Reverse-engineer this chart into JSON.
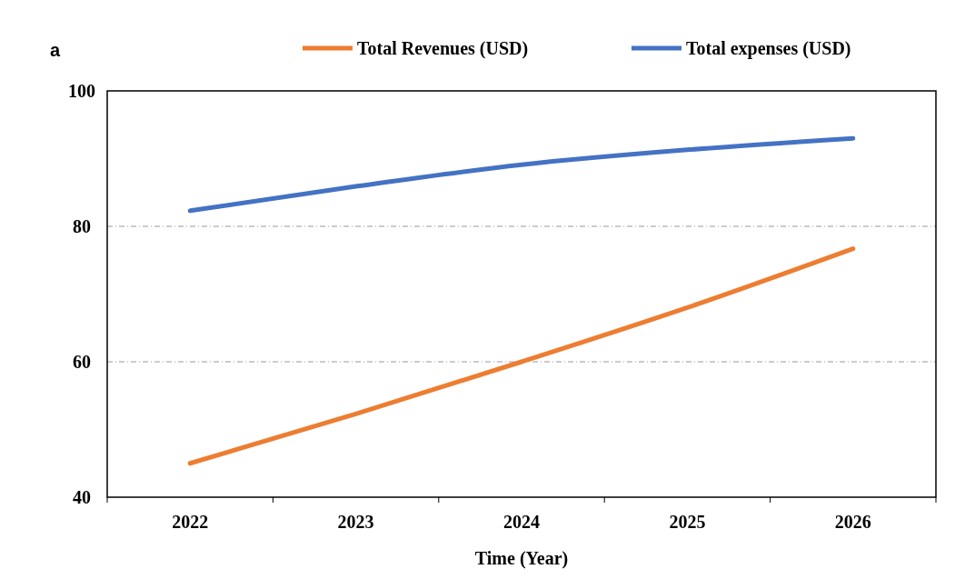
{
  "chart_data": {
    "type": "line",
    "title": "a",
    "xlabel": "Time (Year)",
    "categories": [
      "2022",
      "2023",
      "2024",
      "2025",
      "2026"
    ],
    "series": [
      {
        "name": "Total Revenues (USD)",
        "color": "#ed7d31",
        "values": [
          45,
          52.3,
          60,
          68,
          76.7
        ]
      },
      {
        "name": "Total expenses (USD)",
        "color": "#4472c4",
        "values": [
          82.3,
          85.9,
          89.1,
          91.3,
          93
        ]
      }
    ],
    "ylim": [
      40,
      100
    ],
    "yticks": [
      40,
      60,
      80,
      100
    ],
    "grid": "y",
    "legend": "top",
    "marker": "none",
    "line_style": "solid"
  }
}
